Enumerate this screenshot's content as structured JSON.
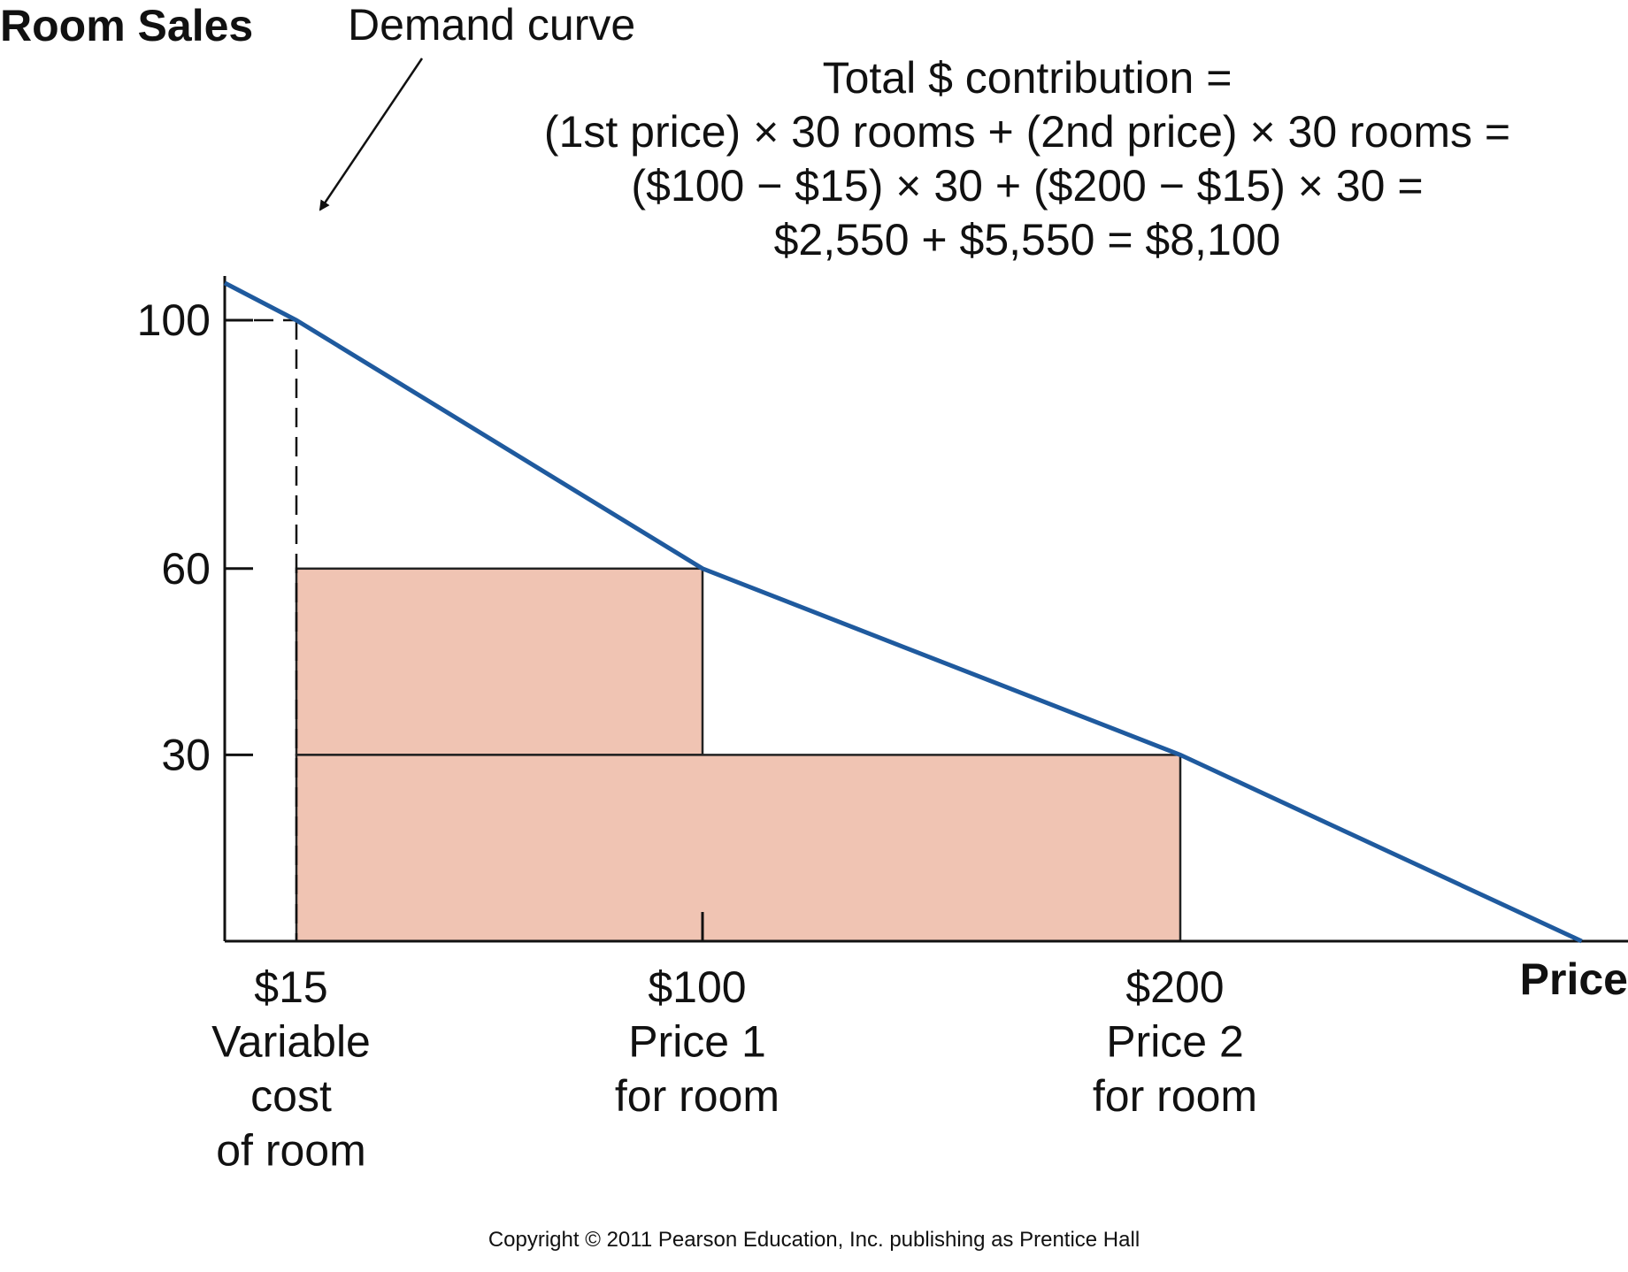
{
  "chart_data": {
    "type": "line",
    "ylabel": "Room Sales",
    "xlabel": "Price",
    "y_ticks": [
      30,
      60,
      100
    ],
    "x_ticks": [
      {
        "value": 15,
        "lines": [
          "$15",
          "Variable",
          "cost",
          "of room"
        ]
      },
      {
        "value": 100,
        "lines": [
          "$100",
          "Price 1",
          "for room"
        ]
      },
      {
        "value": 200,
        "lines": [
          "$200",
          "Price 2",
          "for room"
        ]
      }
    ],
    "xlim": [
      0,
      300
    ],
    "ylim": [
      0,
      100
    ],
    "series": [
      {
        "name": "Demand curve",
        "x": [
          0,
          15,
          100,
          200,
          284
        ],
        "y": [
          106,
          100,
          60,
          30,
          0
        ],
        "color": "#1f5a9e"
      }
    ],
    "rectangles": [
      {
        "x0": 15,
        "x1": 100,
        "y0": 30,
        "y1": 60,
        "color": "#f0c4b3"
      },
      {
        "x0": 15,
        "x1": 200,
        "y0": 0,
        "y1": 30,
        "color": "#f0c4b3"
      }
    ],
    "reference_lines": [
      {
        "from": [
          0,
          100
        ],
        "to": [
          15,
          100
        ]
      },
      {
        "from": [
          15,
          100
        ],
        "to": [
          15,
          0
        ]
      }
    ],
    "annotation": {
      "label": "Demand curve",
      "formula": [
        "Total $ contribution =",
        "(1st  price) × 30 rooms + (2nd price) × 30 rooms =",
        "($100 − $15) × 30 + ($200 − $15) × 30 =",
        "$2,550 + $5,550 = $8,100"
      ]
    }
  },
  "footer": {
    "copyright": "Copyright © 2011 Pearson Education, Inc. publishing as Prentice Hall"
  }
}
